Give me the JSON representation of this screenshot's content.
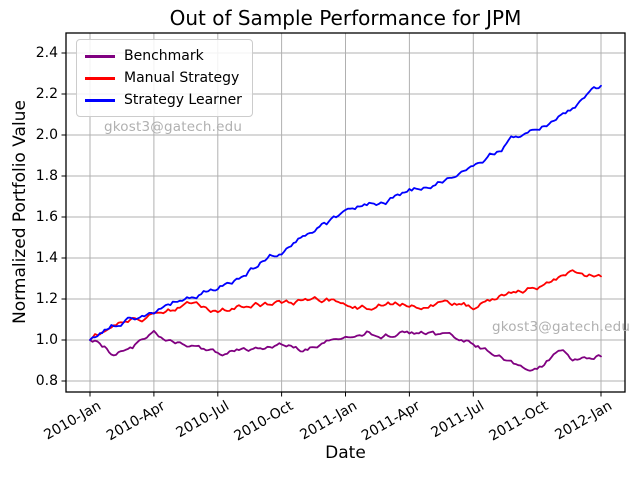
{
  "chart_data": {
    "type": "line",
    "title": "Out of Sample Performance for JPM",
    "xlabel": "Date",
    "ylabel": "Normalized Portfolio Value",
    "grid": true,
    "legend_position": "upper left",
    "x_tick_labels": [
      "2010-Jan",
      "2010-Apr",
      "2010-Jul",
      "2010-Oct",
      "2011-Jan",
      "2011-Apr",
      "2011-Jul",
      "2011-Oct",
      "2012-Jan"
    ],
    "y_tick_labels": [
      "0.8",
      "1.0",
      "1.2",
      "1.4",
      "1.6",
      "1.8",
      "2.0",
      "2.2",
      "2.4"
    ],
    "ylim": [
      0.75,
      2.5
    ],
    "x_dates": [
      "2010-01-01",
      "2010-01-15",
      "2010-02-01",
      "2010-03-01",
      "2010-04-01",
      "2010-05-01",
      "2010-06-01",
      "2010-07-01",
      "2010-08-01",
      "2010-09-01",
      "2010-10-01",
      "2010-11-01",
      "2010-12-01",
      "2011-01-01",
      "2011-02-01",
      "2011-03-01",
      "2011-04-01",
      "2011-05-01",
      "2011-06-01",
      "2011-07-01",
      "2011-08-01",
      "2011-09-01",
      "2011-10-01",
      "2011-11-01",
      "2011-12-01",
      "2012-01-01"
    ],
    "series": [
      {
        "name": "Benchmark",
        "color": "#800080",
        "values": [
          1.0,
          0.99,
          0.94,
          0.97,
          1.04,
          0.97,
          0.95,
          0.94,
          0.95,
          0.96,
          0.97,
          0.95,
          0.97,
          1.01,
          1.04,
          1.03,
          1.04,
          1.03,
          1.0,
          0.99,
          0.95,
          0.9,
          0.88,
          0.93,
          0.89,
          0.92
        ]
      },
      {
        "name": "Manual Strategy",
        "color": "#ff0000",
        "values": [
          1.0,
          1.03,
          1.05,
          1.09,
          1.12,
          1.15,
          1.17,
          1.14,
          1.16,
          1.17,
          1.18,
          1.19,
          1.2,
          1.19,
          1.16,
          1.19,
          1.18,
          1.18,
          1.18,
          1.16,
          1.21,
          1.25,
          1.26,
          1.31,
          1.34,
          1.31
        ]
      },
      {
        "name": "Strategy Learner",
        "color": "#0000ff",
        "values": [
          1.0,
          1.04,
          1.07,
          1.11,
          1.15,
          1.19,
          1.22,
          1.26,
          1.31,
          1.38,
          1.44,
          1.5,
          1.56,
          1.6,
          1.65,
          1.68,
          1.72,
          1.76,
          1.81,
          1.85,
          1.92,
          1.99,
          2.03,
          2.09,
          2.17,
          2.24
        ]
      }
    ],
    "annotations": [
      {
        "text": "gkost3@gatech.edu",
        "position": "upper left"
      },
      {
        "text": "gkost3@gatech.edu",
        "position": "lower right"
      }
    ],
    "colors": {
      "grid": "#b0b0b0",
      "spine": "#000000",
      "watermark": "#b0b0b0"
    }
  }
}
